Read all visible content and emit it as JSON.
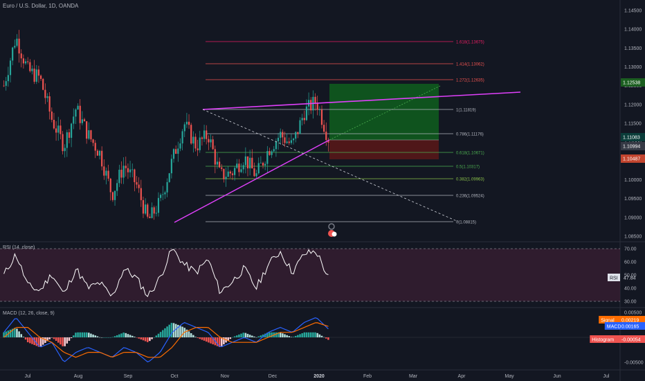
{
  "header": {
    "title": "Euro / U.S. Dollar, 1D, OANDA"
  },
  "colors": {
    "background": "#131722",
    "up": "#26a69a",
    "down": "#ef5350",
    "fib_line": "#b2b5be",
    "trendline": "#e040fb",
    "rsi_band": "#3a1f33",
    "target_zone": "#0f5e1d",
    "stop_zone": "#5a1818"
  },
  "price_axis": {
    "ticks": [
      "1.14500",
      "1.14000",
      "1.13500",
      "1.13000",
      "1.12500",
      "1.12000",
      "1.11500",
      "1.11000",
      "1.10500",
      "1.10000",
      "1.09500",
      "1.09000",
      "1.08500"
    ],
    "badges": [
      {
        "label": "1.12538",
        "color": "#1b5e20"
      },
      {
        "label": "1.11083",
        "color": "#0b3d3a"
      },
      {
        "label": "1.10994",
        "color": "#363a45"
      },
      {
        "label": "1.10487",
        "color": "#c2452f"
      }
    ]
  },
  "time_axis": {
    "labels": [
      "Jul",
      "Aug",
      "Sep",
      "Oct",
      "Nov",
      "Dec",
      "2020",
      "Feb",
      "Mar",
      "Apr",
      "May",
      "Jun",
      "Jul"
    ]
  },
  "fibonacci": [
    {
      "label": "1.618(1.13675)",
      "color": "#e91e63"
    },
    {
      "label": "1.414(1.13062)",
      "color": "#ef5350"
    },
    {
      "label": "1.272(1.12635)",
      "color": "#ef5350"
    },
    {
      "label": "1(1.11819)",
      "color": "#b2b5be"
    },
    {
      "label": "0.786(1.11176)",
      "color": "#b2b5be"
    },
    {
      "label": "0.618(1.10671)",
      "color": "#4caf50"
    },
    {
      "label": "0.5(1.10317)",
      "color": "#4caf50"
    },
    {
      "label": "0.382(1.09963)",
      "color": "#8bc34a"
    },
    {
      "label": "0.236(1.09524)",
      "color": "#b2b5be"
    },
    {
      "label": "0(1.08815)",
      "color": "#b2b5be"
    }
  ],
  "rsi": {
    "title": "RSI (14, close)",
    "ticks": [
      "70.00",
      "60.00",
      "50.00",
      "40.00",
      "30.00"
    ],
    "current_label": "RSI",
    "current_value": "47.84"
  },
  "macd": {
    "title": "MACD (12, 26, close, 9)",
    "ticks": [
      "0.00500",
      "0.00000",
      "-0.00500"
    ],
    "badges": [
      {
        "name": "Signal",
        "value": "0.00219",
        "color": "#ff6d00"
      },
      {
        "name": "MACD",
        "value": "0.00165",
        "color": "#2962ff"
      },
      {
        "name": "Histogram",
        "value": "-0.00054",
        "color": "#ef5350"
      }
    ]
  },
  "chart_data": {
    "type": "candlestick",
    "title": "Euro / U.S. Dollar, 1D, OANDA",
    "xlabel": "",
    "ylabel": "",
    "ylim": [
      1.08,
      1.148
    ],
    "grid": false,
    "legend": "none",
    "series": [
      {
        "name": "EUR/USD",
        "x": [
          "2019-06-15",
          "2019-06-29",
          "2019-07-01",
          "2019-07-10",
          "2019-07-20",
          "2019-07-31",
          "2019-08-05",
          "2019-08-14",
          "2019-08-24",
          "2019-09-03",
          "2019-09-12",
          "2019-09-18",
          "2019-09-30",
          "2019-10-01",
          "2019-10-10",
          "2019-10-18",
          "2019-10-25",
          "2019-11-01",
          "2019-11-08",
          "2019-11-14",
          "2019-11-20",
          "2019-11-29",
          "2019-12-05",
          "2019-12-13",
          "2019-12-20",
          "2019-12-27",
          "2020-01-01",
          "2020-01-08"
        ],
        "close": [
          1.125,
          1.138,
          1.129,
          1.127,
          1.116,
          1.109,
          1.119,
          1.112,
          1.107,
          1.096,
          1.104,
          1.099,
          1.089,
          1.094,
          1.105,
          1.115,
          1.109,
          1.112,
          1.101,
          1.102,
          1.106,
          1.101,
          1.108,
          1.112,
          1.109,
          1.118,
          1.121,
          1.111
        ]
      },
      {
        "name": "RSI",
        "values": [
          50,
          66,
          42,
          38,
          51,
          35,
          55,
          40,
          44,
          33,
          55,
          48,
          34,
          48,
          70,
          58,
          52,
          62,
          37,
          45,
          55,
          40,
          58,
          68,
          52,
          66,
          68,
          48
        ]
      },
      {
        "name": "MACD",
        "values": [
          0.001,
          0.004,
          0.001,
          -0.002,
          -0.001,
          -0.005,
          -0.003,
          -0.002,
          -0.003,
          -0.004,
          -0.002,
          -0.003,
          -0.005,
          -0.003,
          0.001,
          0.003,
          0.002,
          0.001,
          -0.002,
          -0.001,
          0.0,
          -0.001,
          0.001,
          0.002,
          0.001,
          0.003,
          0.004,
          0.0017
        ]
      },
      {
        "name": "Signal",
        "values": [
          0.0,
          0.002,
          0.002,
          0.0,
          -0.001,
          -0.003,
          -0.004,
          -0.003,
          -0.003,
          -0.004,
          -0.003,
          -0.003,
          -0.004,
          -0.004,
          -0.002,
          0.001,
          0.002,
          0.002,
          0.0,
          -0.001,
          -0.001,
          -0.001,
          0.0,
          0.001,
          0.001,
          0.002,
          0.003,
          0.0022
        ]
      }
    ]
  }
}
